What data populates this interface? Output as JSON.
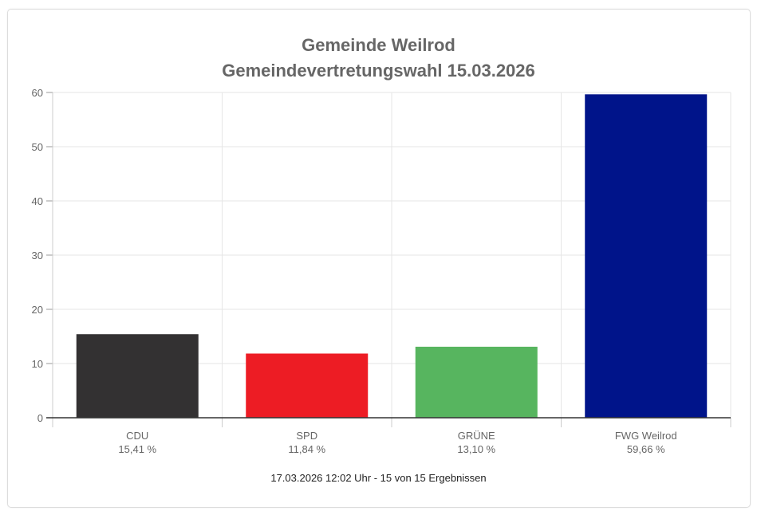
{
  "chart_data": {
    "type": "bar",
    "title": "Gemeinde Weilrod",
    "subtitle": "Gemeindevertretungswahl 15.03.2026",
    "categories": [
      "CDU",
      "SPD",
      "GRÜNE",
      "FWG Weilrod"
    ],
    "value_labels": [
      "15,41 %",
      "11,84 %",
      "13,10 %",
      "59,66 %"
    ],
    "values": [
      15.41,
      11.84,
      13.1,
      59.66
    ],
    "colors": [
      "#333132",
      "#ed1c24",
      "#57b55f",
      "#00148a"
    ],
    "ylim": [
      0,
      60
    ],
    "yticks": [
      0,
      10,
      20,
      30,
      40,
      50,
      60
    ],
    "grid": true,
    "footer": "17.03.2026 12:02 Uhr - 15 von 15 Ergebnissen"
  }
}
